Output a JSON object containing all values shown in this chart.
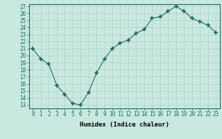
{
  "x": [
    0,
    1,
    2,
    3,
    4,
    5,
    6,
    7,
    8,
    9,
    10,
    11,
    12,
    13,
    14,
    15,
    16,
    17,
    18,
    19,
    20,
    21,
    22,
    23
  ],
  "y": [
    21,
    19.5,
    18.8,
    15.8,
    14.5,
    13.2,
    13.0,
    14.8,
    17.5,
    19.5,
    21.0,
    21.8,
    22.2,
    23.2,
    23.7,
    25.3,
    25.5,
    26.3,
    27.0,
    26.3,
    25.3,
    24.8,
    24.3,
    23.3
  ],
  "line_color": "#1a6b5e",
  "marker": "+",
  "marker_size": 4,
  "bg_color": "#c8e8e0",
  "grid_color": "#b0d0c8",
  "xlabel": "Humidex (Indice chaleur)",
  "xlim": [
    -0.5,
    23.5
  ],
  "ylim": [
    12.5,
    27.3
  ],
  "yticks": [
    13,
    14,
    15,
    16,
    17,
    18,
    19,
    20,
    21,
    22,
    23,
    24,
    25,
    26,
    27
  ],
  "xticks": [
    0,
    1,
    2,
    3,
    4,
    5,
    6,
    7,
    8,
    9,
    10,
    11,
    12,
    13,
    14,
    15,
    16,
    17,
    18,
    19,
    20,
    21,
    22,
    23
  ],
  "label_fontsize": 6.5,
  "tick_fontsize": 5.5,
  "spine_color": "#1a6b5e"
}
